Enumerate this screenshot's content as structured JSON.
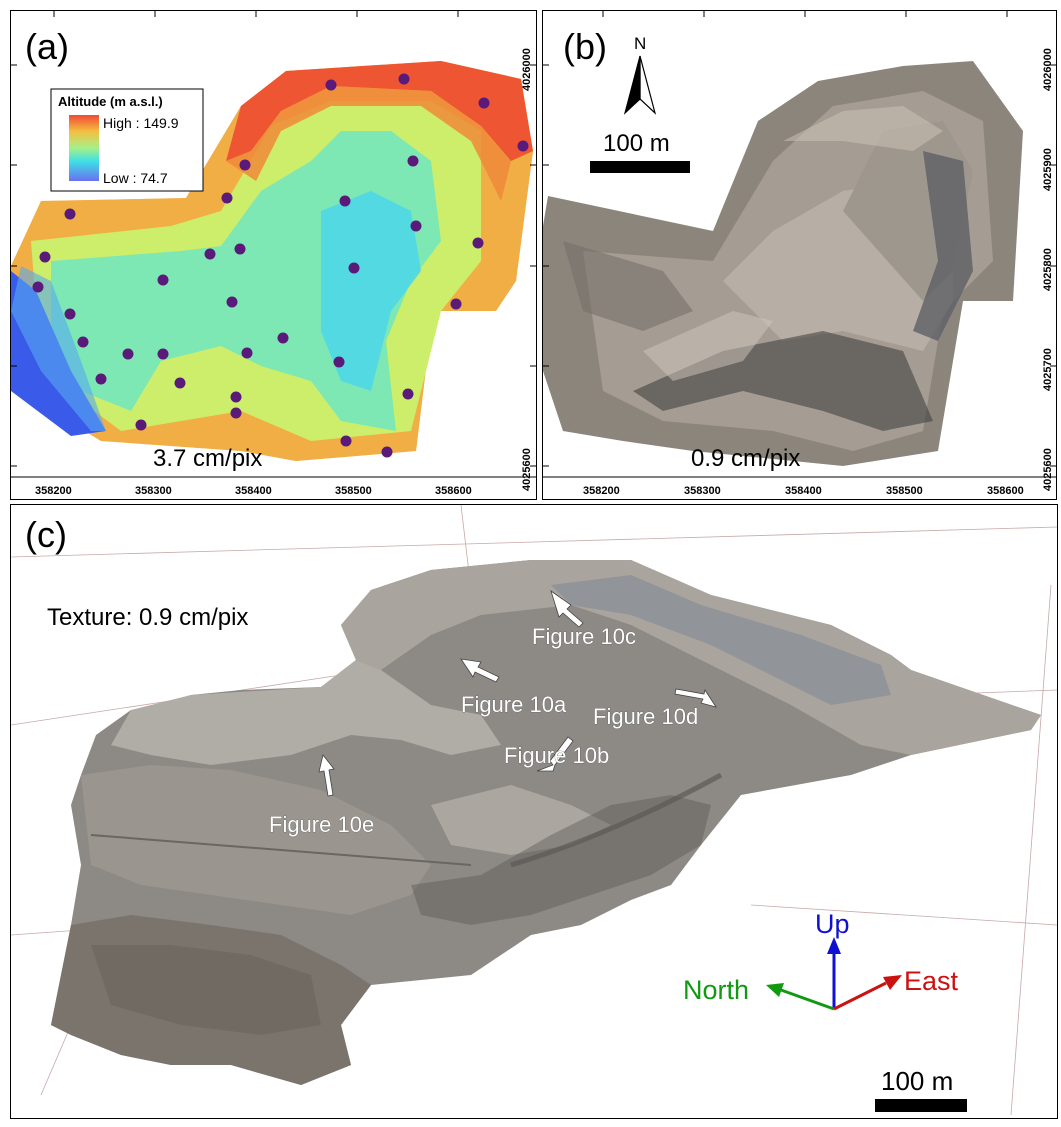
{
  "panel_a": {
    "label": "(a)",
    "legend": {
      "title": "Altitude (m a.s.l.)",
      "high": "High : 149.9",
      "low": "Low : 74.7"
    },
    "resolution": "3.7 cm/pix",
    "x_ticks": [
      "358200",
      "358300",
      "358400",
      "358500",
      "358600"
    ],
    "y_ticks": [
      "4026000",
      "4025600"
    ]
  },
  "panel_b": {
    "label": "(b)",
    "north": "N",
    "scale": "100 m",
    "resolution": "0.9 cm/pix",
    "x_ticks": [
      "358200",
      "358300",
      "358400",
      "358500",
      "358600"
    ],
    "y_ticks": [
      "4026000",
      "4025900",
      "4025800",
      "4025700",
      "4025600"
    ]
  },
  "panel_c": {
    "label": "(c)",
    "texture": "Texture: 0.9 cm/pix",
    "figure_labels": [
      "Figure 10c",
      "Figure 10a",
      "Figure 10d",
      "Figure 10b",
      "Figure 10e"
    ],
    "axes": {
      "up": "Up",
      "north": "North",
      "east": "East"
    },
    "colors": {
      "up": "#1010d0",
      "north": "#119a11",
      "east": "#cc1111"
    },
    "scale": "100 m"
  },
  "colors": {
    "point": "#5a1a7a",
    "dem_high": "#ee4433",
    "dem_low": "#4055ee"
  }
}
